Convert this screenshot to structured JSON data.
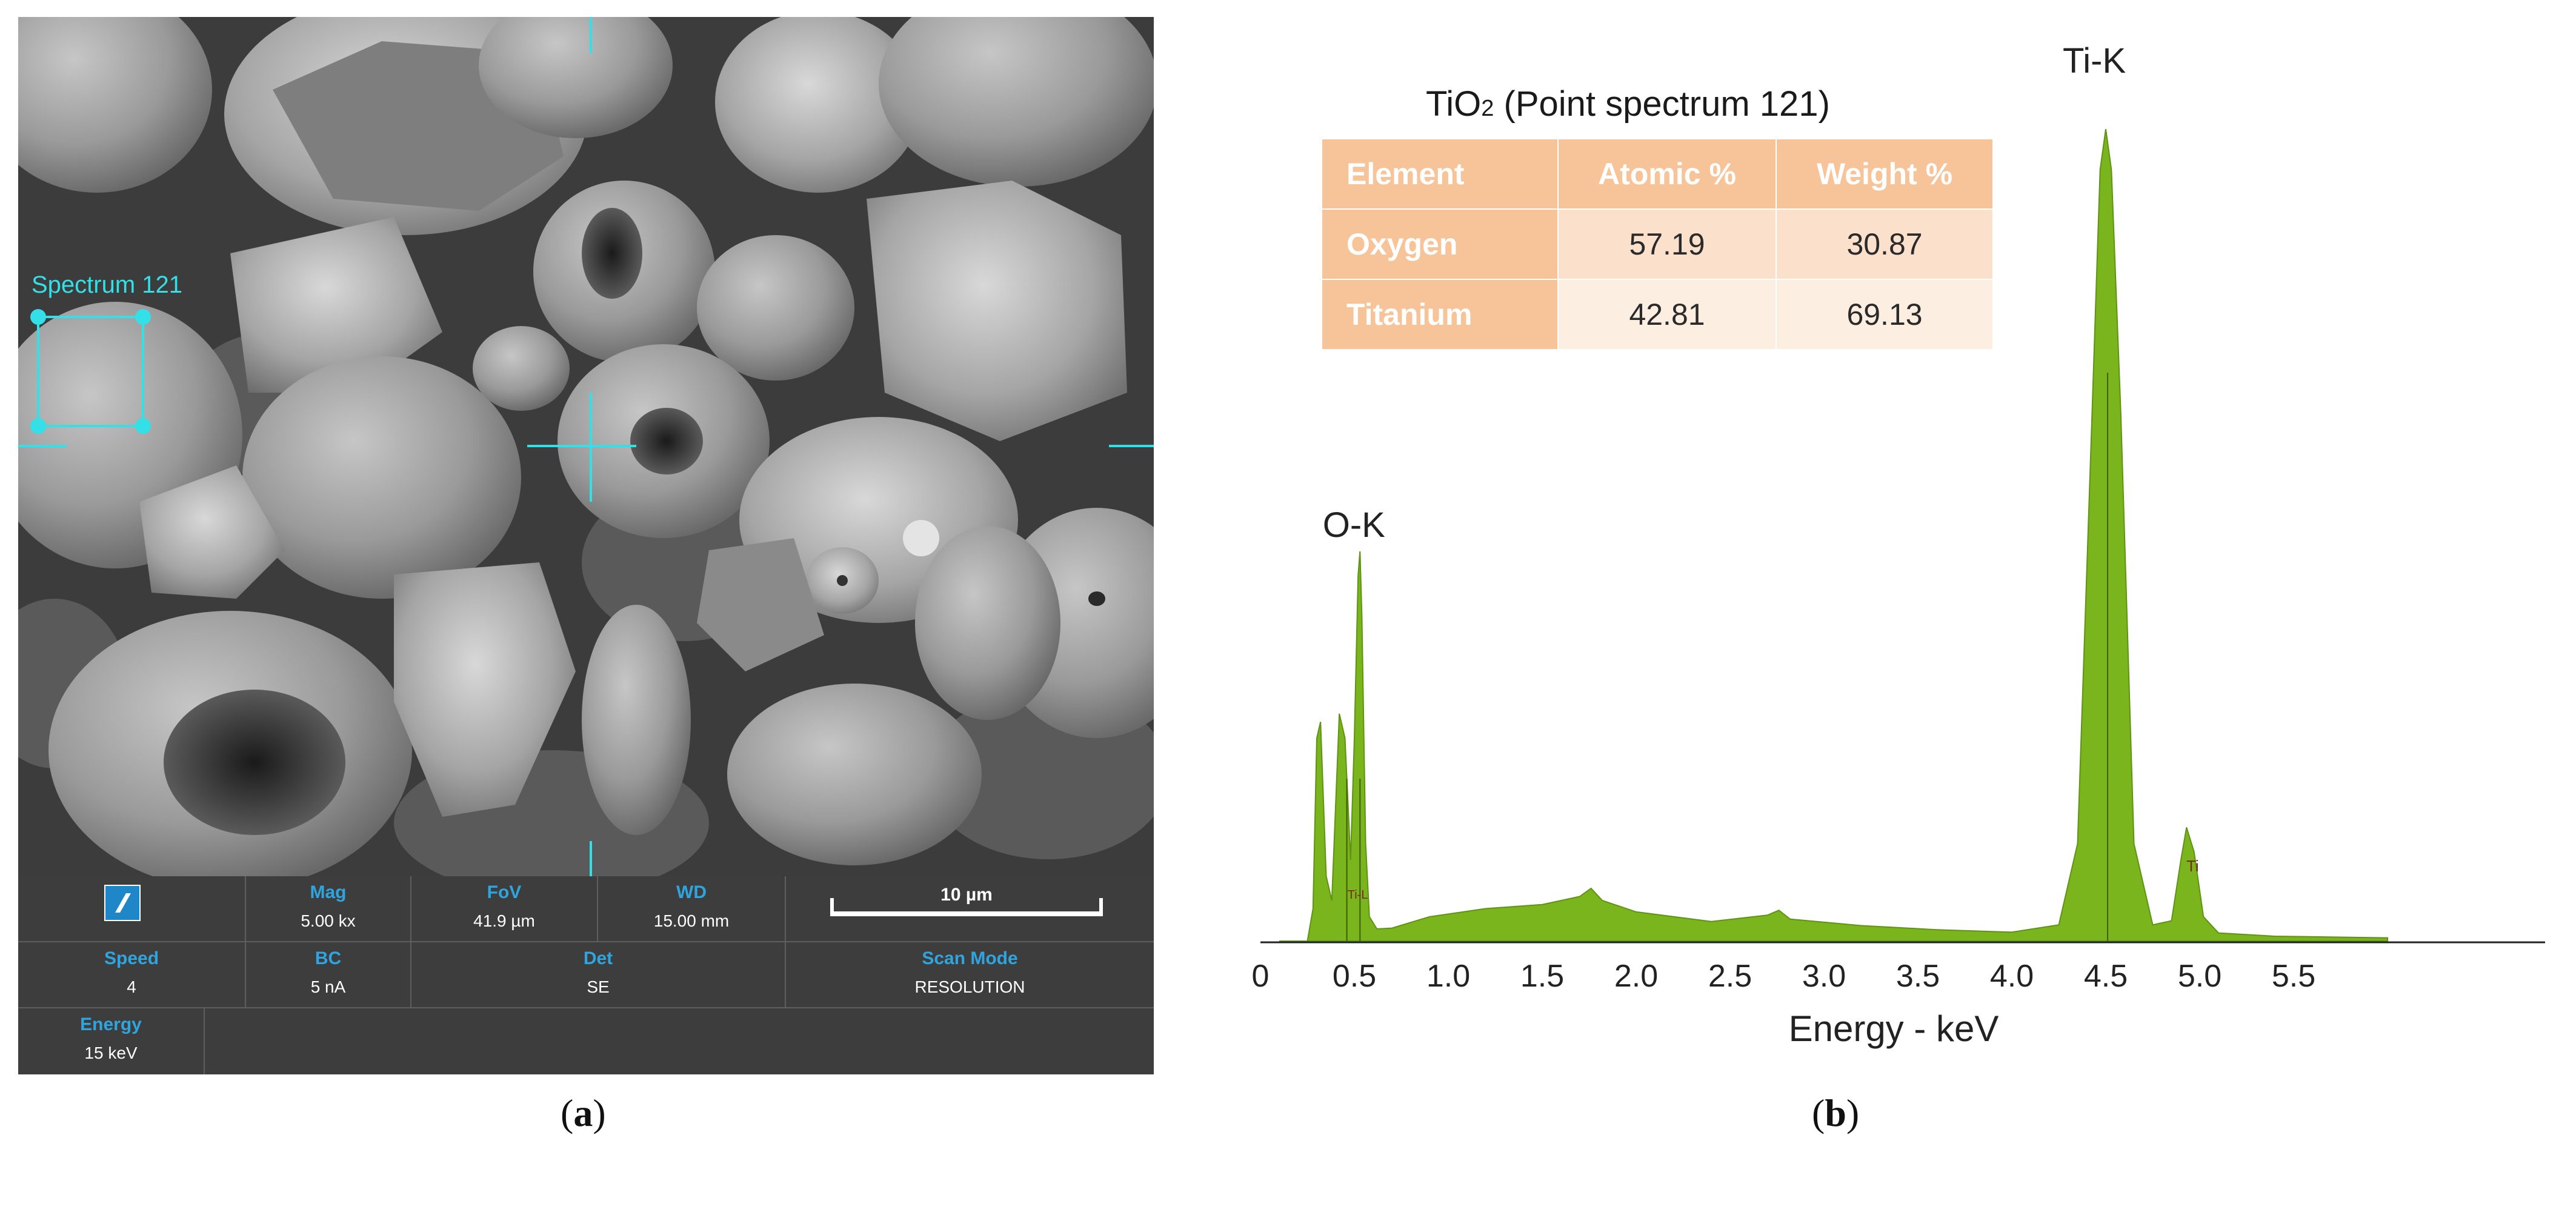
{
  "panel_a": {
    "caption": {
      "open": "(",
      "letter": "a",
      "close": ")"
    },
    "spectrum_label": "Spectrum 121",
    "info_bar": {
      "mag": {
        "label": "Mag",
        "value": "5.00 kx"
      },
      "fov": {
        "label": "FoV",
        "value": "41.9 µm"
      },
      "wd": {
        "label": "WD",
        "value": "15.00 mm"
      },
      "scale_bar": "10 µm",
      "speed": {
        "label": "Speed",
        "value": "4"
      },
      "bc": {
        "label": "BC",
        "value": "5 nA"
      },
      "det": {
        "label": "Det",
        "value": "SE"
      },
      "scan_mode": {
        "label": "Scan Mode",
        "value": "RESOLUTION"
      },
      "energy": {
        "label": "Energy",
        "value": "15 keV"
      }
    },
    "colors": {
      "label_blue": "#2fa5e0",
      "bar_bg": "#3d3d3d",
      "marker_cyan": "#33e0e8"
    }
  },
  "panel_b": {
    "caption": {
      "open": "(",
      "letter": "b",
      "close": ")"
    },
    "title_main": "TiO",
    "title_sub": "2",
    "title_rest": " (Point spectrum 121)",
    "table": {
      "headers": [
        "Element",
        "Atomic %",
        "Weight %"
      ],
      "rows": [
        {
          "element": "Oxygen",
          "atomic": "57.19",
          "weight": "30.87"
        },
        {
          "element": "Titanium",
          "atomic": "42.81",
          "weight": "69.13"
        }
      ]
    },
    "colors": {
      "spectrum_fill": "#7ab51d",
      "table_header": "#f7c49a"
    }
  },
  "chart_data": {
    "type": "area",
    "title": "",
    "xlabel": "Energy - keV",
    "ylabel": "",
    "xlim": [
      0,
      6.0
    ],
    "x_ticks": [
      "0",
      "0.5",
      "1.0",
      "1.5",
      "2.0",
      "2.5",
      "3.0",
      "3.5",
      "4.0",
      "4.5",
      "5.0",
      "5.5"
    ],
    "x_tick_values": [
      0,
      0.5,
      1.0,
      1.5,
      2.0,
      2.5,
      3.0,
      3.5,
      4.0,
      4.5,
      5.0,
      5.5
    ],
    "series": [
      {
        "x": [
          0.1,
          0.25,
          0.28,
          0.3,
          0.32,
          0.35,
          0.38,
          0.42,
          0.45,
          0.48,
          0.5,
          0.52,
          0.53,
          0.54,
          0.56,
          0.58,
          0.62,
          0.7,
          0.9,
          1.2,
          1.5,
          1.7,
          1.76,
          1.82,
          2.0,
          2.4,
          2.7,
          2.76,
          2.82,
          3.2,
          3.6,
          4.0,
          4.25,
          4.35,
          4.42,
          4.47,
          4.5,
          4.53,
          4.58,
          4.65,
          4.75,
          4.85,
          4.9,
          4.93,
          4.97,
          5.02,
          5.1,
          5.4,
          6.0
        ],
        "y": [
          0,
          0,
          4,
          25,
          27,
          8,
          5,
          28,
          25,
          10,
          25,
          45,
          48,
          40,
          12,
          3,
          1.5,
          1.6,
          3,
          4,
          4.5,
          5.5,
          6.5,
          5,
          3.6,
          2.4,
          3.2,
          3.8,
          2.7,
          1.9,
          1.4,
          1.1,
          2,
          12,
          60,
          95,
          100,
          95,
          65,
          12,
          2,
          2.5,
          10,
          14,
          11,
          3,
          1,
          0.6,
          0.4
        ]
      }
    ],
    "annotations": [
      {
        "text": "O-K",
        "x": 0.53
      },
      {
        "text": "Ti-K",
        "x": 4.51
      },
      {
        "text": "Ti-L",
        "x": 0.46
      },
      {
        "text": "Ti",
        "x": 4.93
      }
    ]
  }
}
